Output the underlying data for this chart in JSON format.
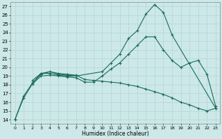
{
  "background_color": "#cce8e8",
  "grid_color": "#b8d8d8",
  "line_color": "#1a6b5a",
  "xlabel": "Humidex (Indice chaleur)",
  "xlim": [
    -0.5,
    23.5
  ],
  "ylim": [
    13.5,
    27.5
  ],
  "xticks": [
    0,
    1,
    2,
    3,
    4,
    5,
    6,
    7,
    8,
    9,
    10,
    11,
    12,
    13,
    14,
    15,
    16,
    17,
    18,
    19,
    20,
    21,
    22,
    23
  ],
  "yticks": [
    14,
    15,
    16,
    17,
    18,
    19,
    20,
    21,
    22,
    23,
    24,
    25,
    26,
    27
  ],
  "lines": [
    {
      "x": [
        0,
        1,
        2,
        3,
        4,
        5,
        6,
        7,
        10,
        11,
        12,
        13,
        14,
        15,
        16,
        17,
        18,
        23
      ],
      "y": [
        14,
        16.7,
        18.2,
        19.3,
        19.3,
        19.1,
        19.0,
        19.0,
        19.5,
        20.5,
        21.5,
        23.3,
        24.2,
        26.1,
        27.2,
        26.3,
        23.7,
        15.3
      ]
    },
    {
      "x": [
        0,
        1,
        2,
        3,
        4,
        5,
        6,
        7,
        8,
        9,
        10,
        11,
        12,
        13,
        14,
        15,
        16,
        17,
        18,
        19,
        20,
        21,
        22,
        23
      ],
      "y": [
        14,
        16.5,
        18.1,
        19.0,
        19.1,
        19.0,
        18.9,
        18.8,
        18.3,
        18.3,
        19.0,
        19.8,
        20.5,
        21.5,
        22.5,
        23.5,
        23.5,
        22.0,
        20.8,
        20.0,
        20.5,
        20.8,
        19.2,
        15.5
      ]
    },
    {
      "x": [
        2,
        3,
        4,
        5,
        6,
        7,
        8,
        9,
        10,
        11,
        12,
        13,
        14,
        15,
        16,
        17,
        18,
        19,
        20,
        21,
        22,
        23
      ],
      "y": [
        18.5,
        19.3,
        19.5,
        19.3,
        19.2,
        19.1,
        18.6,
        18.5,
        18.4,
        18.3,
        18.2,
        18.0,
        17.8,
        17.5,
        17.2,
        16.9,
        16.5,
        16.0,
        15.7,
        15.3,
        15.0,
        15.3
      ]
    },
    {
      "x": [
        2,
        3,
        4,
        5,
        6,
        7
      ],
      "y": [
        18.2,
        19.2,
        19.5,
        19.2,
        19.1,
        19.0
      ]
    }
  ]
}
